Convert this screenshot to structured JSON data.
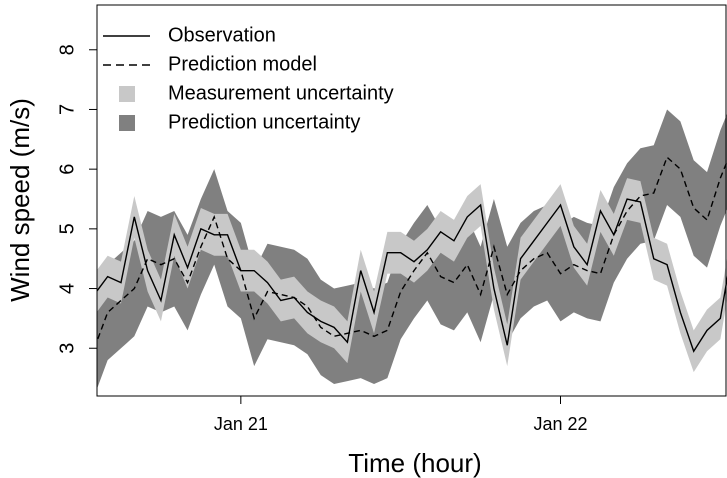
{
  "chart_data": {
    "type": "line",
    "xlabel": "Time (hour)",
    "ylabel": "Wind speed (m/s)",
    "x": [
      -11,
      -10,
      -9,
      -8,
      -7,
      -6,
      -5,
      -4,
      -3,
      -2,
      -1,
      0,
      1,
      2,
      3,
      4,
      5,
      6,
      7,
      8,
      9,
      10,
      11,
      12,
      13,
      14,
      15,
      16,
      17,
      18,
      19,
      20,
      21,
      22,
      23,
      24,
      25,
      26,
      27,
      28,
      29,
      30,
      31,
      32,
      33,
      34,
      35,
      36,
      37
    ],
    "xlim": [
      -10.8,
      36.5
    ],
    "xticks": [
      {
        "value": 0,
        "label": "Jan 21"
      },
      {
        "value": 24,
        "label": "Jan 22"
      }
    ],
    "ylim": [
      2.2,
      8.75
    ],
    "yticks": [
      3,
      4,
      5,
      6,
      7,
      8
    ],
    "series": [
      {
        "name": "Observation",
        "color": "#000000",
        "dash": false,
        "values": [
          3.9,
          4.2,
          4.1,
          5.2,
          4.3,
          3.8,
          4.9,
          4.35,
          5.0,
          4.9,
          4.9,
          4.3,
          4.3,
          4.1,
          3.8,
          3.85,
          3.6,
          3.45,
          3.35,
          3.1,
          4.3,
          3.6,
          4.6,
          4.6,
          4.45,
          4.65,
          4.95,
          4.8,
          5.2,
          5.4,
          4.0,
          3.05,
          4.5,
          4.8,
          5.1,
          5.4,
          4.7,
          4.4,
          5.3,
          4.9,
          5.5,
          5.45,
          4.5,
          4.4,
          3.6,
          2.95,
          3.3,
          3.5,
          4.8
        ]
      },
      {
        "name": "Prediction model",
        "color": "#000000",
        "dash": true,
        "values": [
          3.0,
          3.6,
          3.8,
          4.0,
          4.5,
          4.4,
          4.5,
          4.1,
          4.7,
          5.2,
          4.5,
          4.3,
          3.5,
          3.95,
          3.9,
          3.85,
          3.7,
          3.35,
          3.2,
          3.25,
          3.3,
          3.2,
          3.3,
          3.95,
          4.3,
          4.6,
          4.2,
          4.1,
          4.4,
          3.9,
          4.7,
          3.9,
          4.3,
          4.5,
          4.6,
          4.25,
          4.4,
          4.3,
          4.25,
          4.9,
          5.3,
          5.55,
          5.6,
          6.2,
          6.0,
          5.35,
          5.15,
          5.85,
          6.4
        ]
      }
    ],
    "bands": [
      {
        "name": "Measurement uncertainty",
        "color": "#c8c8c8",
        "lower": [
          3.55,
          3.85,
          3.75,
          4.85,
          3.95,
          3.45,
          4.55,
          4.0,
          4.65,
          4.55,
          4.55,
          3.95,
          3.95,
          3.75,
          3.45,
          3.5,
          3.25,
          3.1,
          3.0,
          2.75,
          3.95,
          3.25,
          4.25,
          4.25,
          4.1,
          4.3,
          4.6,
          4.45,
          4.85,
          5.05,
          3.65,
          2.7,
          4.15,
          4.45,
          4.75,
          5.05,
          4.35,
          4.05,
          4.95,
          4.55,
          5.15,
          5.1,
          4.15,
          4.05,
          3.25,
          2.6,
          2.95,
          3.15,
          4.45
        ],
        "upper": [
          4.25,
          4.55,
          4.45,
          5.55,
          4.65,
          4.15,
          5.25,
          4.7,
          5.35,
          5.25,
          5.25,
          4.65,
          4.65,
          4.45,
          4.15,
          4.2,
          3.95,
          3.8,
          3.7,
          3.45,
          4.65,
          3.95,
          4.95,
          4.95,
          4.8,
          5.0,
          5.3,
          5.15,
          5.55,
          5.75,
          4.35,
          3.4,
          4.85,
          5.15,
          5.45,
          5.75,
          5.05,
          4.75,
          5.65,
          5.25,
          5.85,
          5.8,
          4.85,
          4.75,
          3.95,
          3.3,
          3.65,
          3.85,
          5.15
        ]
      },
      {
        "name": "Prediction uncertainty",
        "color": "#808080",
        "lower": [
          2.2,
          2.8,
          3.0,
          3.2,
          3.7,
          3.6,
          3.7,
          3.3,
          3.9,
          4.4,
          3.7,
          3.5,
          2.7,
          3.15,
          3.1,
          3.05,
          2.9,
          2.55,
          2.4,
          2.45,
          2.5,
          2.4,
          2.5,
          3.15,
          3.5,
          3.8,
          3.4,
          3.3,
          3.6,
          3.1,
          3.9,
          3.1,
          3.5,
          3.7,
          3.8,
          3.45,
          3.6,
          3.5,
          3.45,
          4.1,
          4.5,
          4.75,
          4.8,
          5.4,
          5.2,
          4.55,
          4.35,
          5.05,
          5.6
        ],
        "upper": [
          3.8,
          4.4,
          4.6,
          4.8,
          5.3,
          5.2,
          5.3,
          4.9,
          5.5,
          6.0,
          5.3,
          5.1,
          4.3,
          4.75,
          4.7,
          4.65,
          4.5,
          4.15,
          4.0,
          4.05,
          4.1,
          4.0,
          4.1,
          4.75,
          5.1,
          5.4,
          5.0,
          4.9,
          5.2,
          4.7,
          5.5,
          4.7,
          5.1,
          5.3,
          5.4,
          5.05,
          5.2,
          5.1,
          5.05,
          5.7,
          6.1,
          6.35,
          6.4,
          7.0,
          6.8,
          6.15,
          5.95,
          6.65,
          7.2
        ]
      }
    ]
  }
}
